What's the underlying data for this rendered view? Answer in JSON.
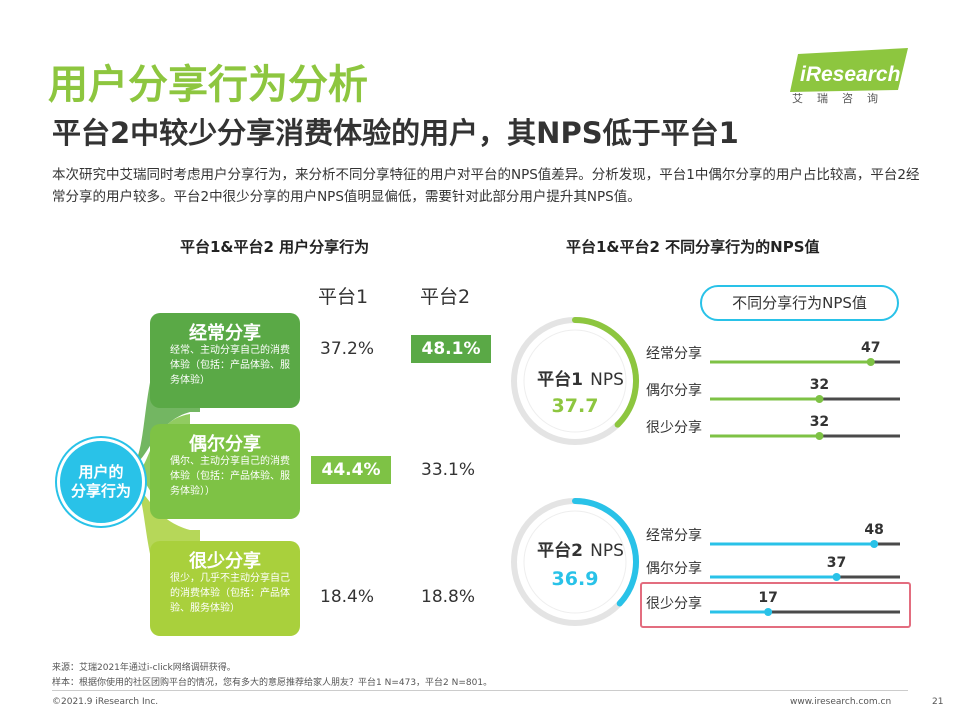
{
  "page": {
    "title": "用户分享行为分析",
    "subtitle": "平台2中较少分享消费体验的用户，其NPS低于平台1",
    "intro": "本次研究中艾瑞同时考虑用户分享行为，来分析不同分享特征的用户对平台的NPS值差异。分析发现，平台1中偶尔分享的用户占比较高，平台2经常分享的用户较多。平台2中很少分享的用户NPS值明显偏低，需要针对此部分用户提升其NPS值。",
    "logo_name": "iResearch",
    "logo_sub": "艾瑞咨询",
    "page_number": "21",
    "copyright": "©2021.9 iResearch Inc.",
    "website": "www.iresearch.com.cn",
    "source_line1": "来源：艾瑞2021年通过i-click网络调研获得。",
    "source_line2": "样本：根据你使用的社区团购平台的情况，您有多大的意愿推荐给家人朋友？平台1 N=473，平台2 N=801。"
  },
  "left": {
    "section_title": "平台1&平台2 用户分享行为",
    "center_label_1": "用户的",
    "center_label_2": "分享行为",
    "col1": "平台1",
    "col2": "平台2"
  },
  "right": {
    "section_title": "平台1&平台2 不同分享行为的NPS值",
    "legend": "不同分享行为NPS值",
    "p1_label": "平台1",
    "p1_nps": "NPS",
    "p1_value": "37.7",
    "p2_label": "平台2",
    "p2_nps": "NPS",
    "p2_value": "36.9"
  },
  "colors": {
    "dark_green": "#5aa946",
    "mid_green": "#7ec245",
    "light_green": "#a9d03c",
    "cyan": "#29c2e8",
    "title_green": "#8dc63f"
  },
  "chart_data": [
    {
      "type": "table",
      "title": "平台1&平台2 用户分享行为",
      "categories": [
        "经常分享",
        "偶尔分享",
        "很少分享"
      ],
      "descriptions": [
        "经常、主动分享自己的消费体验（包括：产品体验、服务体验）",
        "偶尔、主动分享自己的消费体验（包括：产品体验、服务体验））",
        "很少，几乎不主动分享自己的消费体验（包括：产品体验、服务体验）"
      ],
      "series": [
        {
          "name": "平台1",
          "values": [
            37.2,
            44.4,
            18.4
          ],
          "labels": [
            "37.2%",
            "44.4%",
            "18.4%"
          ]
        },
        {
          "name": "平台2",
          "values": [
            48.1,
            33.1,
            18.8
          ],
          "labels": [
            "48.1%",
            "33.1%",
            "18.8%"
          ]
        }
      ]
    },
    {
      "type": "bar",
      "title": "平台1&平台2 不同分享行为的NPS值",
      "categories": [
        "经常分享",
        "偶尔分享",
        "很少分享"
      ],
      "series": [
        {
          "name": "平台1",
          "values": [
            47,
            32,
            32
          ],
          "total_nps": 37.7
        },
        {
          "name": "平台2",
          "values": [
            48,
            37,
            17
          ],
          "total_nps": 36.9
        }
      ],
      "xlim": [
        -100,
        100
      ]
    }
  ]
}
